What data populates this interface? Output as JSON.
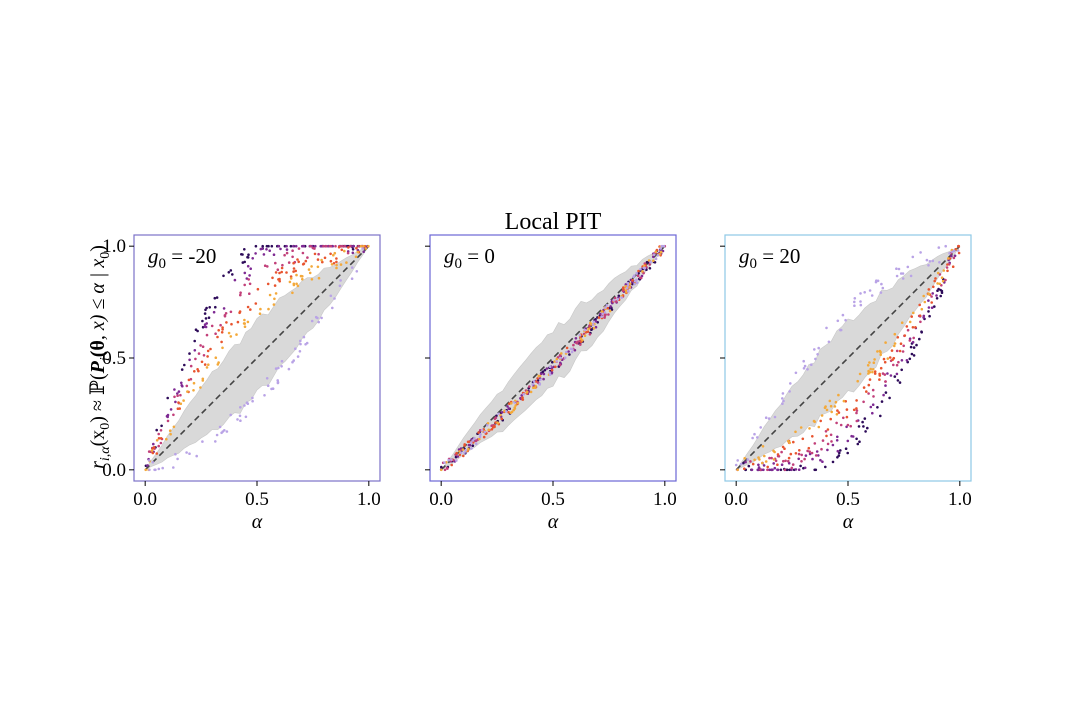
{
  "figure": {
    "title": "Local PIT",
    "ylabel": "r̂i,α(x0) ≈ ℙ(Pi(θ,x) ≤ α | x0)",
    "ylabel_parts": {
      "r": "r",
      "sub": "i,α",
      "x0": "(x",
      "zero": "0",
      "approx": ") ≈ ℙ(",
      "P": "P",
      "i": "i",
      "theta": "(θ",
      "x": ", x) ≤ α | x",
      "close": ")"
    }
  },
  "chart_data": [
    {
      "type": "scatter",
      "panel_label": "g0 = -20",
      "label_parts": {
        "g": "g",
        "sub": "0",
        "rest": " = -20"
      },
      "xlabel": "α",
      "ylabel": "r̂i,α(x0) ≈ ℙ(Pi(θ,x) ≤ α | x0)",
      "xlim": [
        -0.05,
        1.05
      ],
      "ylim": [
        -0.05,
        1.05
      ],
      "xticks": [
        "0.0",
        "0.5",
        "1.0"
      ],
      "yticks": [
        "0.0",
        "0.5",
        "1.0"
      ],
      "frame_color": "#7b72c9",
      "deviation": 0.3,
      "band": {
        "lower": 0.08,
        "upper": 0.08,
        "color": "#d9d9d9"
      },
      "reference_line": {
        "from": [
          0,
          0
        ],
        "to": [
          1,
          1
        ],
        "style": "dashed",
        "color": "#444444"
      }
    },
    {
      "type": "scatter",
      "panel_label": "g0 = 0",
      "label_parts": {
        "g": "g",
        "sub": "0",
        "rest": " = 0"
      },
      "xlabel": "α",
      "xlim": [
        -0.05,
        1.05
      ],
      "ylim": [
        -0.05,
        1.05
      ],
      "xticks": [
        "0.0",
        "0.5",
        "1.0"
      ],
      "yticks": [],
      "frame_color": "#6c66d6",
      "deviation": 0.0,
      "band": {
        "lower": 0.06,
        "upper": 0.06,
        "color": "#d9d9d9"
      },
      "reference_line": {
        "from": [
          0,
          0
        ],
        "to": [
          1,
          1
        ],
        "style": "dashed",
        "color": "#444444"
      }
    },
    {
      "type": "scatter",
      "panel_label": "g0 = 20",
      "label_parts": {
        "g": "g",
        "sub": "0",
        "rest": " = 20"
      },
      "xlabel": "α",
      "xlim": [
        -0.05,
        1.05
      ],
      "ylim": [
        -0.05,
        1.05
      ],
      "xticks": [
        "0.0",
        "0.5",
        "1.0"
      ],
      "yticks": [],
      "frame_color": "#8ec9e6",
      "deviation": -0.2,
      "band": {
        "lower": 0.08,
        "upper": 0.08,
        "color": "#d9d9d9"
      },
      "reference_line": {
        "from": [
          0,
          0
        ],
        "to": [
          1,
          1
        ],
        "style": "dashed",
        "color": "#444444"
      }
    }
  ],
  "series_colors": [
    "#2d0b59",
    "#7e2a93",
    "#c2407a",
    "#e8542f",
    "#f3a93b",
    "#b9a3e6"
  ]
}
